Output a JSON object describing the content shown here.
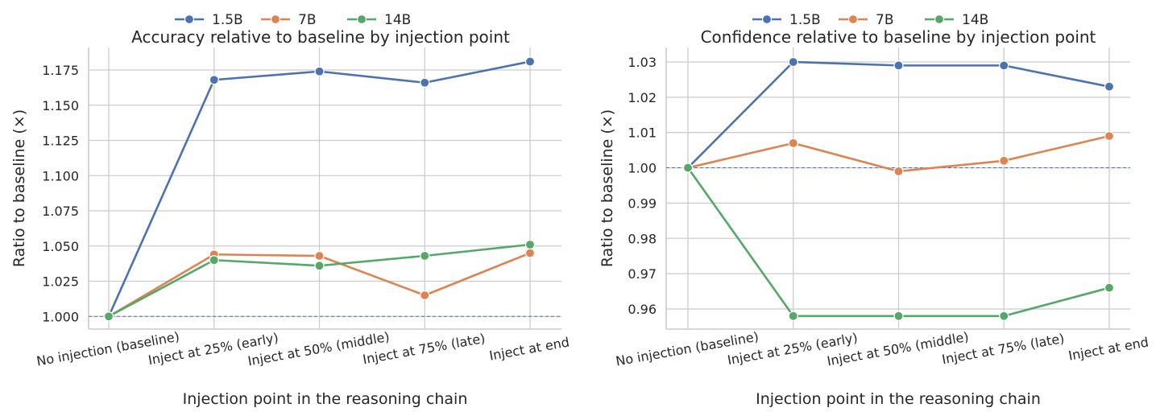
{
  "chart_data": [
    {
      "type": "line",
      "title": "Accuracy relative to baseline by injection point",
      "xlabel": "Injection point in the reasoning chain",
      "ylabel": "Ratio to baseline (×)",
      "categories": [
        "No injection (baseline)",
        "Inject at 25% (early)",
        "Inject at 50% (middle)",
        "Inject at 75% (late)",
        "Inject at end"
      ],
      "ylim": [
        0.991,
        1.191
      ],
      "yticks": [
        1.0,
        1.025,
        1.05,
        1.075,
        1.1,
        1.125,
        1.15,
        1.175
      ],
      "ytick_labels": [
        "1.000",
        "1.025",
        "1.050",
        "1.075",
        "1.100",
        "1.125",
        "1.150",
        "1.175"
      ],
      "baseline": 1.0,
      "grid": true,
      "legend_position": "top-center",
      "series": [
        {
          "name": "1.5B",
          "color": "#4c72b0",
          "values": [
            1.0,
            1.168,
            1.174,
            1.166,
            1.181
          ]
        },
        {
          "name": "7B",
          "color": "#dd8452",
          "values": [
            1.0,
            1.044,
            1.043,
            1.015,
            1.045
          ]
        },
        {
          "name": "14B",
          "color": "#55a868",
          "values": [
            1.0,
            1.04,
            1.036,
            1.043,
            1.051
          ]
        }
      ]
    },
    {
      "type": "line",
      "title": "Confidence relative to baseline by injection point",
      "xlabel": "Injection point in the reasoning chain",
      "ylabel": "Ratio to baseline (×)",
      "categories": [
        "No injection (baseline)",
        "Inject at 25% (early)",
        "Inject at 50% (middle)",
        "Inject at 75% (late)",
        "Inject at end"
      ],
      "ylim": [
        0.9543,
        1.0341
      ],
      "yticks": [
        0.96,
        0.97,
        0.98,
        0.99,
        1.0,
        1.01,
        1.02,
        1.03
      ],
      "ytick_labels": [
        "0.96",
        "0.97",
        "0.98",
        "0.99",
        "1.00",
        "1.01",
        "1.02",
        "1.03"
      ],
      "baseline": 1.0,
      "grid": true,
      "legend_position": "top-center",
      "series": [
        {
          "name": "1.5B",
          "color": "#4c72b0",
          "values": [
            1.0,
            1.03,
            1.029,
            1.029,
            1.023
          ]
        },
        {
          "name": "7B",
          "color": "#dd8452",
          "values": [
            1.0,
            1.007,
            0.999,
            1.002,
            1.009
          ]
        },
        {
          "name": "14B",
          "color": "#55a868",
          "values": [
            1.0,
            0.958,
            0.958,
            0.958,
            0.966
          ]
        }
      ]
    }
  ]
}
